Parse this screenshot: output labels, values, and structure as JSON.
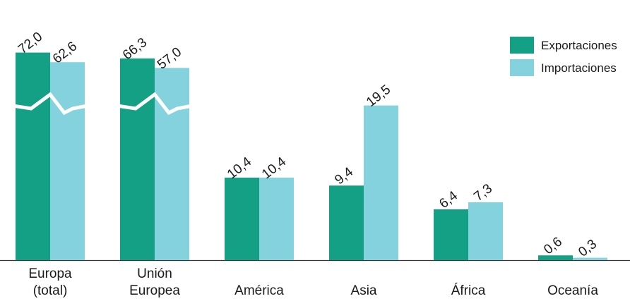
{
  "chart_data": {
    "type": "bar",
    "title": "",
    "xlabel": "",
    "ylabel": "",
    "categories": [
      [
        "Europa",
        "(total)"
      ],
      [
        "Unión",
        "Europea"
      ],
      [
        "América"
      ],
      [
        "Asia"
      ],
      [
        "África"
      ],
      [
        "Oceanía"
      ]
    ],
    "series": [
      {
        "name": "Exportaciones",
        "color": "#13a084",
        "values": [
          72.0,
          66.3,
          10.4,
          9.4,
          6.4,
          0.6
        ]
      },
      {
        "name": "Importaciones",
        "color": "#85d2df",
        "values": [
          62.6,
          57.0,
          10.4,
          19.5,
          7.3,
          0.3
        ]
      }
    ],
    "value_labels": {
      "Exportaciones": [
        "72,0",
        "66,3",
        "10,4",
        "9,4",
        "6,4",
        "0,6"
      ],
      "Importaciones": [
        "62,6",
        "57,0",
        "10,4",
        "19,5",
        "7,3",
        "0,3"
      ]
    },
    "axis_break": {
      "categories": [
        0,
        1
      ]
    },
    "ylim": [
      0,
      30
    ],
    "grid": false,
    "legend": "top-right"
  }
}
